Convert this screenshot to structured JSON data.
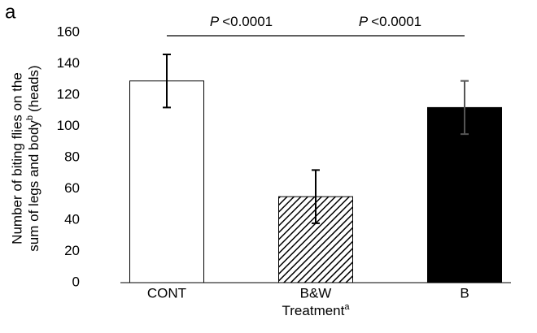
{
  "panel_label": "a",
  "chart_data": {
    "type": "bar",
    "ylabel": {
      "line1": "Number of biting flies on the",
      "line2": "sum of legs and body",
      "line2_sup": "b",
      "line2_end": "(heads)"
    },
    "xlabel": {
      "text": "Treatment",
      "sup": "a"
    },
    "categories": [
      "CONT",
      "B&W",
      "B"
    ],
    "values": [
      129,
      55,
      112
    ],
    "errors": [
      17,
      17,
      17
    ],
    "colors": [
      "#ffffff",
      "#000000",
      "#000000"
    ],
    "patterns": [
      "solid",
      "hatch",
      "solid"
    ],
    "ylim": [
      0,
      160
    ],
    "yticks": [
      0,
      20,
      40,
      60,
      80,
      100,
      120,
      140,
      160
    ],
    "grid": false,
    "annotations": [
      {
        "italic": "P",
        "text": "<0.0001",
        "from": 0,
        "to": 1
      },
      {
        "italic": "P",
        "text": "<0.0001",
        "from": 1,
        "to": 2
      }
    ]
  }
}
